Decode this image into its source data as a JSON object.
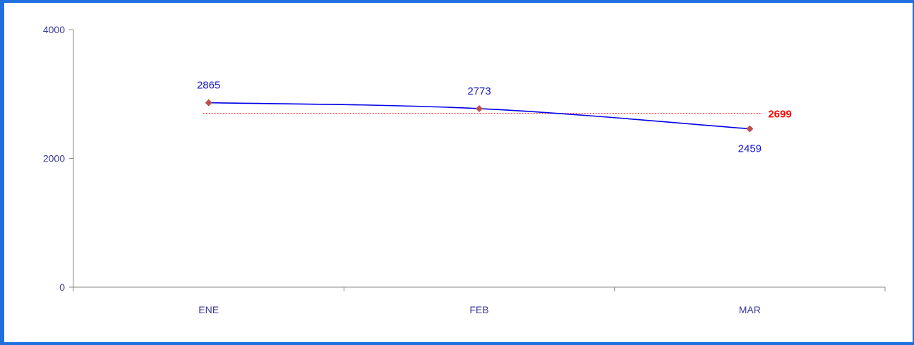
{
  "chart_data": {
    "type": "line",
    "categories": [
      "ENE",
      "FEB",
      "MAR"
    ],
    "series": [
      {
        "values": [
          2865,
          2773,
          2459
        ]
      }
    ],
    "reference_line": {
      "value": 2699,
      "label": "2699"
    },
    "data_labels": [
      "2865",
      "2773",
      "2459"
    ],
    "y_ticks": [
      "0",
      "2000",
      "4000"
    ],
    "y_tick_values": [
      0,
      2000,
      4000
    ],
    "ylim": [
      0,
      4000
    ],
    "grid": false,
    "legend": "none",
    "colors": {
      "line": "#0000e6",
      "marker": "#c0504d",
      "reference": "#ff0000",
      "axis": "#888888",
      "tick_text": "#3a3a9a",
      "data_text": "#1414d4",
      "frame": "#1f6fdf"
    }
  }
}
